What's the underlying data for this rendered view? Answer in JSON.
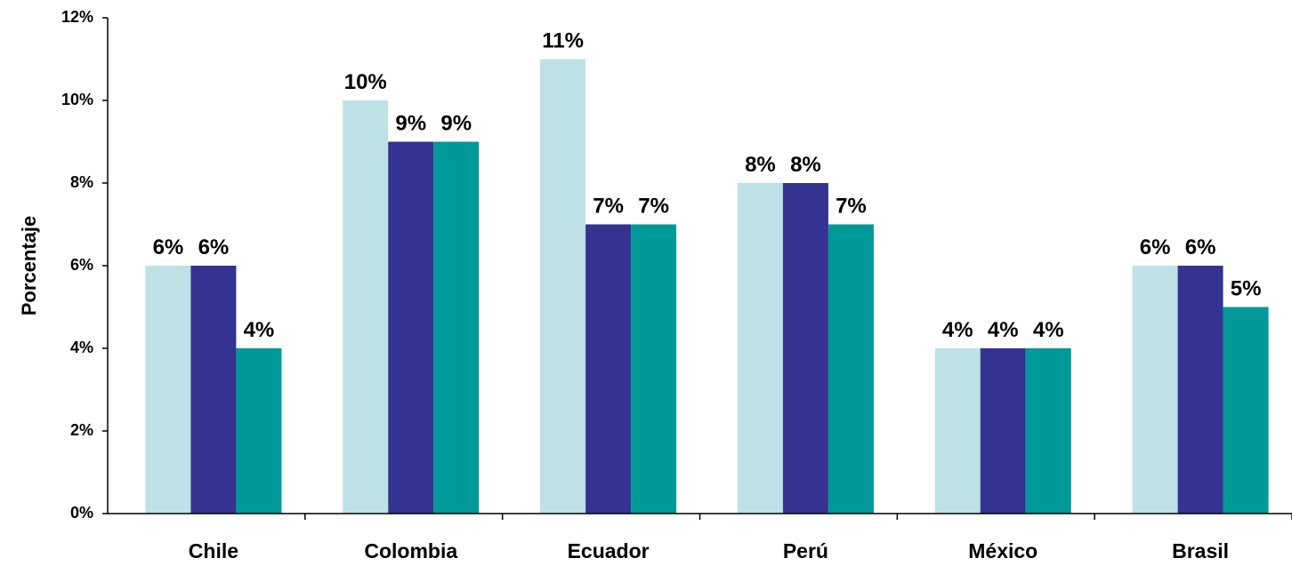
{
  "chart_data": {
    "type": "bar",
    "title": "",
    "xlabel": "",
    "ylabel": "Porcentaje",
    "ylim": [
      0,
      12
    ],
    "yticks": [
      {
        "value": 0,
        "label": "0%"
      },
      {
        "value": 2,
        "label": "2%"
      },
      {
        "value": 4,
        "label": "4%"
      },
      {
        "value": 6,
        "label": "6%"
      },
      {
        "value": 8,
        "label": "8%"
      },
      {
        "value": 10,
        "label": "10%"
      },
      {
        "value": 12,
        "label": "12%"
      }
    ],
    "grid": false,
    "legend": "none",
    "categories": [
      "Chile",
      "Colombia",
      "Ecuador",
      "Perú",
      "México",
      "Brasil"
    ],
    "series": [
      {
        "color": "#bde1e4",
        "values": [
          6,
          10,
          11,
          8,
          4,
          6
        ],
        "labels": [
          "6%",
          "10%",
          "11%",
          "8%",
          "4%",
          "6%"
        ]
      },
      {
        "color": "#343391",
        "values": [
          6,
          9,
          7,
          8,
          4,
          6
        ],
        "labels": [
          "6%",
          "9%",
          "7%",
          "8%",
          "4%",
          "6%"
        ]
      },
      {
        "color": "#009999",
        "values": [
          4,
          9,
          7,
          7,
          4,
          5
        ],
        "labels": [
          "4%",
          "9%",
          "7%",
          "7%",
          "4%",
          "5%"
        ]
      }
    ]
  }
}
